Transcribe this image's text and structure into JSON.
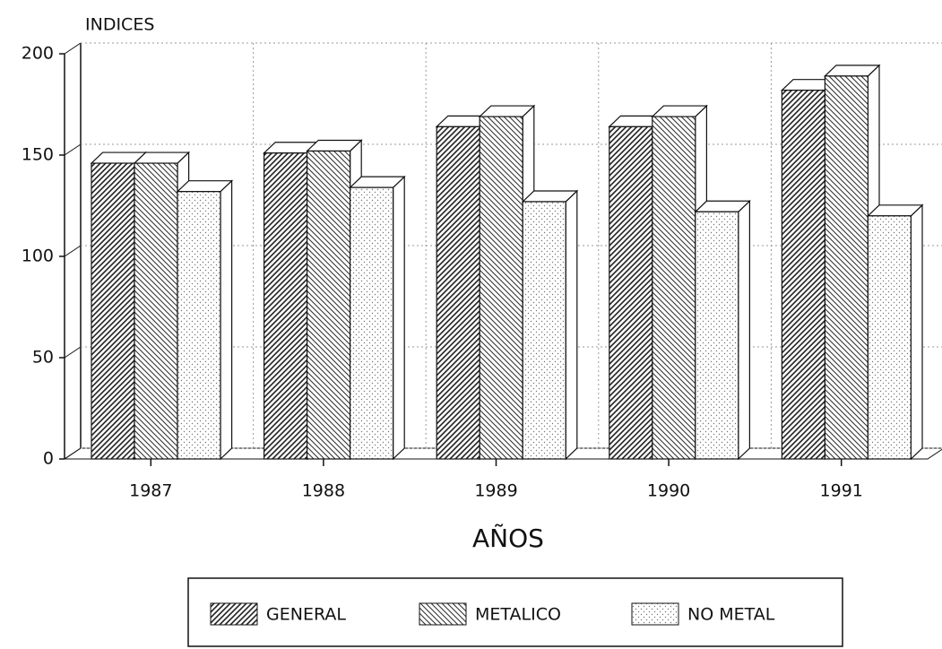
{
  "chart_data": {
    "type": "bar3d",
    "y_label": "INDICES",
    "x_label": "AÑOS",
    "categories": [
      "1987",
      "1988",
      "1989",
      "1990",
      "1991"
    ],
    "series": [
      {
        "name": "GENERAL",
        "color": "#222222",
        "pattern": "forward-hatch",
        "values": [
          146,
          151,
          164,
          164,
          182
        ]
      },
      {
        "name": "METALICO",
        "color": "#333333",
        "pattern": "back-hatch",
        "values": [
          146,
          152,
          169,
          169,
          189
        ]
      },
      {
        "name": "NO METAL",
        "color": "#777777",
        "pattern": "dots",
        "values": [
          132,
          134,
          127,
          122,
          120
        ]
      }
    ],
    "ylim": [
      0,
      200
    ],
    "yticks": [
      0,
      50,
      100,
      150,
      200
    ],
    "grid": true
  }
}
